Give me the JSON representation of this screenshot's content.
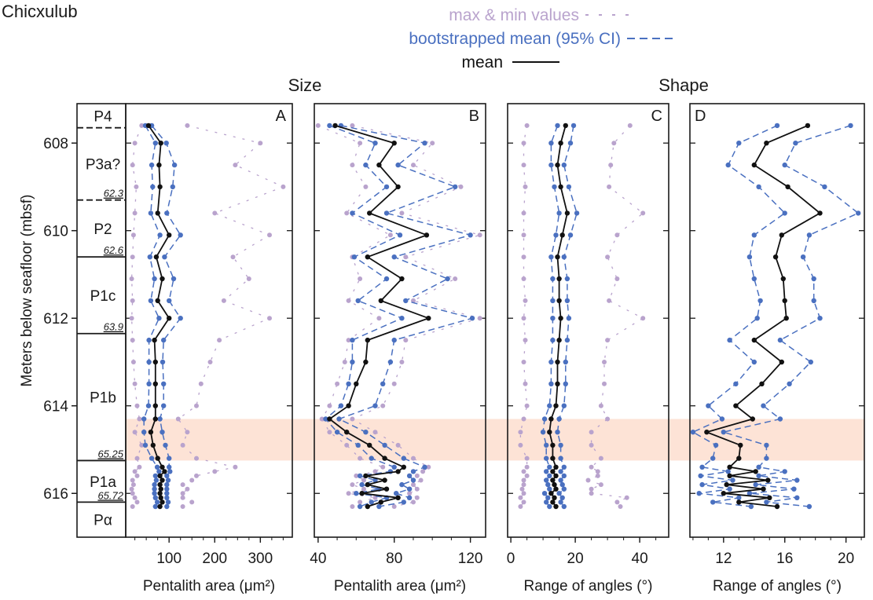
{
  "site": "Chicxulub",
  "legend": [
    {
      "label": "max & min values",
      "color": "#b9a3cd",
      "style": "dash-sparse"
    },
    {
      "label": "bootstrapped mean (95% CI)",
      "color": "#4a70c0",
      "style": "dash"
    },
    {
      "label": "mean",
      "color": "#111111",
      "style": "solid"
    }
  ],
  "section_titles": {
    "size": "Size",
    "shape": "Shape"
  },
  "ylabel": "Meters below seafloor (mbsf)",
  "depth_ticks": [
    "608",
    "610",
    "612",
    "614",
    "616"
  ],
  "band": {
    "from": 614.3,
    "to": 615.25,
    "color": "#fde3d6"
  },
  "zones": [
    {
      "label": "P4",
      "top": 607.1,
      "bottom": 607.65
    },
    {
      "label": "P3a?",
      "top": 607.65,
      "bottom": 609.3
    },
    {
      "label": "P2",
      "top": 609.3,
      "bottom": 610.6
    },
    {
      "label": "P1c",
      "top": 610.6,
      "bottom": 612.35
    },
    {
      "label": "P1b",
      "top": 612.35,
      "bottom": 615.25
    },
    {
      "label": "P1a",
      "top": 615.25,
      "bottom": 616.2
    },
    {
      "label": "Pα",
      "top": 616.2,
      "bottom": 617.0
    }
  ],
  "boundaries": [
    {
      "depth": 607.65,
      "style": "dashed",
      "age": ""
    },
    {
      "depth": 609.3,
      "style": "dashed",
      "age": "62.3"
    },
    {
      "depth": 610.6,
      "style": "solid",
      "age": "62.6"
    },
    {
      "depth": 612.35,
      "style": "solid",
      "age": "63.9"
    },
    {
      "depth": 615.25,
      "style": "solid",
      "age": "65.25"
    },
    {
      "depth": 616.2,
      "style": "solid",
      "age": "65.72"
    }
  ],
  "chart_data": [
    {
      "type": "line",
      "panel": "A",
      "xlabel": "Pentalith area (μm²)",
      "xlim": [
        5,
        370
      ],
      "xticks": [
        100,
        200,
        300
      ],
      "depth": [
        607.6,
        608.0,
        608.5,
        609.0,
        609.6,
        610.1,
        610.6,
        611.1,
        611.6,
        612.0,
        612.5,
        613.0,
        613.5,
        614.0,
        614.3,
        614.6,
        614.9,
        615.2,
        615.4,
        615.5,
        615.6,
        615.7,
        615.8,
        615.9,
        616.0,
        616.1,
        616.2,
        616.3
      ],
      "series": [
        {
          "name": "mean",
          "values": [
            55,
            82,
            78,
            80,
            75,
            100,
            72,
            85,
            75,
            100,
            68,
            70,
            70,
            70,
            70,
            60,
            65,
            75,
            85,
            90,
            80,
            85,
            80,
            82,
            80,
            82,
            85,
            80
          ]
        },
        {
          "name": "ci_low",
          "values": [
            48,
            70,
            62,
            64,
            60,
            80,
            58,
            68,
            60,
            78,
            56,
            56,
            56,
            55,
            45,
            45,
            48,
            62,
            74,
            78,
            70,
            72,
            68,
            68,
            68,
            70,
            74,
            70
          ]
        },
        {
          "name": "ci_high",
          "values": [
            62,
            94,
            112,
            108,
            95,
            125,
            90,
            110,
            100,
            125,
            88,
            86,
            88,
            88,
            80,
            85,
            92,
            100,
            100,
            102,
            95,
            98,
            95,
            95,
            95,
            95,
            98,
            95
          ]
        },
        {
          "name": "min",
          "values": [
            40,
            25,
            20,
            28,
            25,
            22,
            20,
            18,
            20,
            18,
            20,
            22,
            25,
            30,
            35,
            25,
            40,
            30,
            35,
            25,
            30,
            20,
            22,
            18,
            20,
            25,
            30,
            20
          ]
        },
        {
          "name": "max",
          "values": [
            140,
            300,
            245,
            350,
            200,
            320,
            240,
            275,
            220,
            320,
            210,
            190,
            170,
            160,
            120,
            140,
            130,
            160,
            245,
            200,
            160,
            150,
            130,
            140,
            130,
            130,
            150,
            130
          ]
        }
      ]
    },
    {
      "type": "line",
      "panel": "B",
      "xlabel": "Pentalith area (μm²)",
      "xlim": [
        38,
        128
      ],
      "xticks": [
        40,
        80,
        120
      ],
      "depth": [
        607.6,
        608.0,
        608.5,
        609.0,
        609.6,
        610.1,
        610.6,
        611.1,
        611.6,
        612.0,
        612.5,
        613.0,
        613.5,
        614.0,
        614.3,
        614.6,
        614.9,
        615.2,
        615.4,
        615.5,
        615.6,
        615.7,
        615.8,
        615.9,
        616.0,
        616.1,
        616.2,
        616.3
      ],
      "series": [
        {
          "name": "mean",
          "values": [
            49,
            80,
            72,
            82,
            67,
            97,
            66,
            84,
            73,
            98,
            66,
            65,
            60,
            56,
            46,
            55,
            67,
            75,
            85,
            82,
            65,
            75,
            66,
            76,
            63,
            82,
            73,
            66
          ]
        },
        {
          "name": "ci_low",
          "values": [
            46,
            70,
            65,
            76,
            58,
            83,
            59,
            76,
            61,
            84,
            58,
            58,
            56,
            52,
            44,
            50,
            61,
            68,
            80,
            78,
            62,
            70,
            63,
            72,
            60,
            76,
            68,
            62
          ]
        },
        {
          "name": "ci_high",
          "values": [
            52,
            96,
            82,
            112,
            76,
            120,
            80,
            108,
            86,
            121,
            80,
            78,
            74,
            70,
            51,
            65,
            75,
            85,
            96,
            90,
            88,
            90,
            84,
            88,
            81,
            88,
            85,
            72
          ]
        },
        {
          "name": "min",
          "values": [
            40,
            62,
            58,
            65,
            55,
            78,
            58,
            62,
            56,
            72,
            56,
            54,
            50,
            46,
            42,
            46,
            55,
            62,
            74,
            70,
            60,
            64,
            58,
            64,
            56,
            70,
            62,
            58
          ]
        },
        {
          "name": "max",
          "values": [
            58,
            100,
            90,
            115,
            84,
            125,
            86,
            112,
            90,
            125,
            86,
            84,
            80,
            74,
            58,
            70,
            82,
            90,
            98,
            95,
            92,
            94,
            90,
            92,
            88,
            92,
            90,
            80
          ]
        }
      ]
    },
    {
      "type": "line",
      "panel": "C",
      "xlabel": "Range of angles (°)",
      "xlim": [
        -1,
        49
      ],
      "xticks": [
        0,
        20,
        40
      ],
      "depth": [
        607.6,
        608.0,
        608.5,
        609.0,
        609.6,
        610.1,
        610.6,
        611.1,
        611.6,
        612.0,
        612.5,
        613.0,
        613.5,
        614.0,
        614.3,
        614.6,
        614.9,
        615.2,
        615.4,
        615.5,
        615.6,
        615.7,
        615.8,
        615.9,
        616.0,
        616.1,
        616.2,
        616.3
      ],
      "series": [
        {
          "name": "mean",
          "values": [
            17.0,
            15.5,
            14.5,
            15.5,
            17.5,
            16.0,
            14.5,
            15.0,
            15.0,
            15.5,
            15.0,
            14.5,
            14.5,
            14.0,
            12.5,
            12.0,
            13.0,
            13.0,
            14.0,
            13.0,
            14.0,
            13.0,
            13.5,
            14.0,
            12.5,
            13.5,
            13.0,
            14.0
          ]
        },
        {
          "name": "ci_low",
          "values": [
            14.5,
            12.5,
            12.5,
            13.5,
            15.0,
            14.0,
            12.5,
            13.0,
            13.0,
            13.0,
            13.0,
            12.5,
            12.5,
            12.0,
            10.5,
            10.0,
            11.0,
            11.0,
            12.0,
            11.0,
            12.0,
            11.0,
            11.5,
            12.0,
            10.5,
            11.5,
            11.0,
            12.0
          ]
        },
        {
          "name": "ci_high",
          "values": [
            19.5,
            18.5,
            16.5,
            18.0,
            20.5,
            18.5,
            16.5,
            17.5,
            17.5,
            18.0,
            17.5,
            17.0,
            17.0,
            16.5,
            15.0,
            14.5,
            15.5,
            15.5,
            16.5,
            15.5,
            16.5,
            15.5,
            16.0,
            16.5,
            15.0,
            16.0,
            15.5,
            16.5
          ]
        },
        {
          "name": "min",
          "values": [
            5.0,
            4.0,
            4.0,
            4.5,
            4.0,
            4.0,
            4.0,
            4.0,
            4.5,
            4.0,
            4.5,
            4.0,
            4.5,
            5.0,
            4.0,
            3.0,
            3.0,
            5.0,
            5.0,
            4.0,
            5.0,
            4.0,
            4.0,
            3.5,
            4.0,
            3.0,
            4.0,
            3.0
          ]
        },
        {
          "name": "max",
          "values": [
            37.0,
            32.0,
            31.0,
            30.5,
            41.0,
            33.0,
            30.0,
            33.0,
            30.5,
            41.0,
            30.0,
            29.0,
            29.0,
            28.0,
            30.0,
            25.0,
            25.0,
            28.0,
            25.0,
            27.0,
            27.0,
            24.0,
            28.0,
            25.0,
            25.0,
            36.0,
            33.0,
            34.0
          ]
        }
      ]
    },
    {
      "type": "line",
      "panel": "D",
      "xlabel": "Range of angles (°)",
      "xlim": [
        9.8,
        21.2
      ],
      "xticks": [
        12,
        16,
        20
      ],
      "depth": [
        607.6,
        608.0,
        608.5,
        609.0,
        609.6,
        610.1,
        610.6,
        611.1,
        611.6,
        612.0,
        612.5,
        613.0,
        613.5,
        614.0,
        614.3,
        614.6,
        614.9,
        615.2,
        615.4,
        615.5,
        615.6,
        615.7,
        615.8,
        615.9,
        616.0,
        616.1,
        616.2,
        616.3
      ],
      "series": [
        {
          "name": "mean",
          "values": [
            17.5,
            14.8,
            14.0,
            16.2,
            18.3,
            15.8,
            15.4,
            15.9,
            16.0,
            16.1,
            14.0,
            15.8,
            14.5,
            12.8,
            13.9,
            10.9,
            13.1,
            13.0,
            12.4,
            14.1,
            12.4,
            14.9,
            12.2,
            14.6,
            12.0,
            15.0,
            13.0,
            15.5
          ]
        },
        {
          "name": "ci_low",
          "values": [
            15.5,
            13.0,
            12.3,
            14.3,
            16.0,
            14.0,
            13.7,
            14.0,
            14.4,
            14.2,
            12.4,
            14.0,
            12.8,
            11.0,
            11.9,
            10.0,
            11.5,
            11.3,
            10.6,
            12.3,
            10.5,
            12.6,
            10.6,
            12.4,
            10.4,
            13.0,
            11.3,
            13.8
          ]
        },
        {
          "name": "ci_high",
          "values": [
            20.3,
            16.7,
            16.0,
            18.6,
            20.8,
            17.6,
            17.2,
            17.9,
            17.9,
            18.3,
            15.7,
            17.7,
            16.3,
            14.6,
            15.7,
            12.0,
            14.8,
            14.8,
            14.3,
            16.0,
            14.3,
            16.8,
            14.1,
            16.6,
            13.7,
            16.8,
            14.8,
            17.6
          ]
        },
        {
          "name": "min",
          "values": []
        },
        {
          "name": "max",
          "values": []
        }
      ]
    }
  ]
}
